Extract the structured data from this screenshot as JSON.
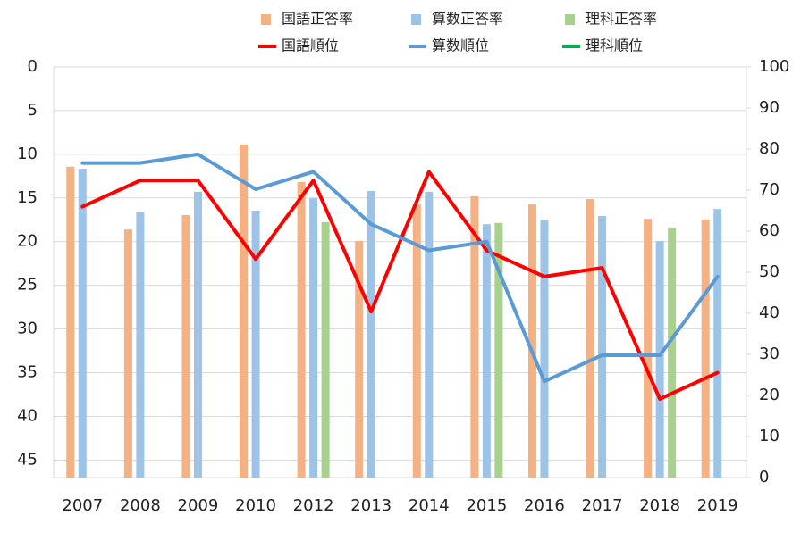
{
  "chart_data": {
    "type": "combo",
    "categories": [
      "2007",
      "2008",
      "2009",
      "2010",
      "2012",
      "2013",
      "2014",
      "2015",
      "2016",
      "2017",
      "2018",
      "2019"
    ],
    "ylim": [
      0,
      47
    ],
    "yticks": [
      0,
      5,
      10,
      15,
      20,
      25,
      30,
      35,
      40,
      45
    ],
    "y_reversed": true,
    "y2lim": [
      0,
      100
    ],
    "y2ticks": [
      0,
      10,
      20,
      30,
      40,
      50,
      60,
      70,
      80,
      90,
      100
    ],
    "grid": true,
    "series": [
      {
        "name": "国語正答率",
        "type": "bar",
        "axis": "y2",
        "color": "#f4b183",
        "values": [
          75.7,
          60.4,
          63.9,
          81.1,
          72.0,
          57.6,
          66.5,
          68.5,
          66.5,
          67.8,
          63.0,
          62.8
        ]
      },
      {
        "name": "算数正答率",
        "type": "bar",
        "axis": "y2",
        "color": "#9dc3e6",
        "values": [
          75.2,
          64.6,
          69.6,
          65.0,
          68.0,
          69.8,
          69.6,
          61.7,
          62.8,
          63.7,
          57.6,
          65.4
        ]
      },
      {
        "name": "理科正答率",
        "type": "bar",
        "axis": "y2",
        "color": "#a9d18e",
        "values": [
          null,
          null,
          null,
          null,
          62.2,
          null,
          null,
          62.0,
          null,
          null,
          60.9,
          null
        ]
      },
      {
        "name": "国語順位",
        "type": "line",
        "color": "#ff0000",
        "values": [
          16,
          13,
          13,
          22,
          13,
          28,
          12,
          21,
          24,
          23,
          38,
          35
        ]
      },
      {
        "name": "算数順位",
        "type": "line",
        "color": "#5b9bd5",
        "values": [
          11,
          11,
          10,
          14,
          12,
          18,
          21,
          20,
          36,
          33,
          33,
          24
        ]
      },
      {
        "name": "理科順位",
        "type": "line",
        "color": "#00b050",
        "values": [
          null,
          null,
          null,
          null,
          null,
          null,
          null,
          null,
          null,
          null,
          null,
          null
        ]
      }
    ]
  }
}
